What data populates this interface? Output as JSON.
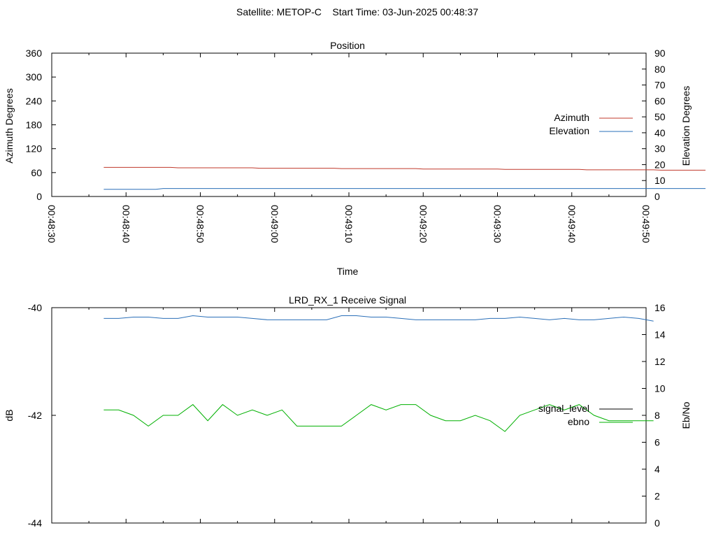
{
  "page": {
    "title": "Satellite: METOP-C    Start Time: 03-Jun-2025 00:48:37"
  },
  "colors": {
    "azimuth": "#c0392b",
    "elevation": "#2a6fb8",
    "signal_level": "#000000",
    "ebno": "#00b000",
    "eb_no_upper": "#2a6fb8"
  },
  "chart_data": [
    {
      "type": "line",
      "title": "Position",
      "xlabel": "Time",
      "ylabel": "Azimuth Degrees",
      "y2label": "Elevation Degrees",
      "x_ticks": [
        "00:48:30",
        "00:48:40",
        "00:48:50",
        "00:49:00",
        "00:49:10",
        "00:49:20",
        "00:49:30",
        "00:49:40",
        "00:49:50"
      ],
      "xlim_seconds": [
        0,
        80
      ],
      "ylim": [
        0,
        360
      ],
      "y_ticks": [
        "0",
        "60",
        "120",
        "180",
        "240",
        "300",
        "360"
      ],
      "y2lim": [
        0,
        90
      ],
      "y2_ticks": [
        "0",
        "10",
        "20",
        "30",
        "40",
        "50",
        "60",
        "70",
        "80",
        "90"
      ],
      "legend_position": "right",
      "series": [
        {
          "name": "Azimuth",
          "axis": "y",
          "x": [
            7,
            16,
            17,
            27,
            28,
            38,
            39,
            49,
            50,
            60,
            61,
            71,
            72,
            81,
            82,
            88
          ],
          "y": [
            73,
            73,
            72,
            72,
            71,
            71,
            70,
            70,
            69,
            69,
            68,
            68,
            67,
            67,
            66,
            66
          ]
        },
        {
          "name": "Elevation",
          "axis": "y2",
          "x": [
            7,
            14,
            15,
            88
          ],
          "y": [
            4.5,
            4.5,
            5,
            5
          ]
        }
      ]
    },
    {
      "type": "line",
      "title": "LRD_RX_1 Receive Signal",
      "ylabel": "dB",
      "y2label": "Eb/No",
      "x_ticks_count": 16,
      "ylim": [
        -44,
        -40
      ],
      "y_ticks": [
        "-40",
        "-42",
        "-44"
      ],
      "y2lim": [
        0,
        16
      ],
      "y2_ticks": [
        "0",
        "2",
        "4",
        "6",
        "8",
        "10",
        "12",
        "14",
        "16"
      ],
      "legend_position": "right",
      "series": [
        {
          "name": "signal_level",
          "axis": "y",
          "x": [],
          "y": []
        },
        {
          "name": "ebno",
          "axis": "y2",
          "x": [
            7,
            9,
            11,
            13,
            15,
            17,
            19,
            21,
            23,
            25,
            27,
            29,
            31,
            33,
            35,
            37,
            39,
            41,
            43,
            45,
            47,
            49,
            51,
            53,
            55,
            57,
            59,
            61,
            63,
            65,
            67,
            69,
            71,
            73,
            75,
            77,
            79,
            81
          ],
          "y": [
            8.4,
            8.4,
            8.0,
            7.2,
            8.0,
            8.0,
            8.8,
            7.6,
            8.8,
            8.0,
            8.4,
            8.0,
            8.4,
            7.2,
            7.2,
            7.2,
            7.2,
            8.0,
            8.8,
            8.4,
            8.8,
            8.8,
            8.0,
            7.6,
            7.6,
            8.0,
            7.6,
            6.8,
            8.0,
            8.4,
            8.8,
            8.4,
            8.8,
            8.0,
            7.6,
            7.6,
            7.6,
            7.6
          ]
        },
        {
          "name": "",
          "axis": "y2",
          "x": [
            7,
            9,
            11,
            13,
            15,
            17,
            19,
            21,
            23,
            25,
            27,
            29,
            31,
            33,
            35,
            37,
            39,
            41,
            43,
            45,
            47,
            49,
            51,
            53,
            55,
            57,
            59,
            61,
            63,
            65,
            67,
            69,
            71,
            73,
            75,
            77,
            79,
            81
          ],
          "y": [
            15.2,
            15.2,
            15.3,
            15.3,
            15.2,
            15.2,
            15.4,
            15.3,
            15.3,
            15.3,
            15.2,
            15.1,
            15.1,
            15.1,
            15.1,
            15.1,
            15.4,
            15.4,
            15.3,
            15.3,
            15.2,
            15.1,
            15.1,
            15.1,
            15.1,
            15.1,
            15.2,
            15.2,
            15.3,
            15.2,
            15.1,
            15.2,
            15.1,
            15.1,
            15.2,
            15.3,
            15.2,
            15.0
          ]
        }
      ]
    }
  ]
}
